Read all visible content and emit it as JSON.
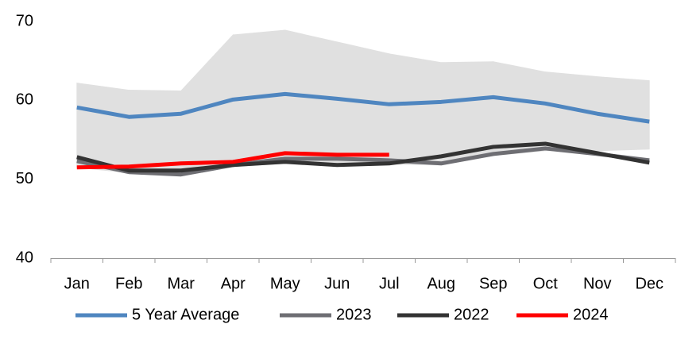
{
  "chart_data": {
    "type": "line",
    "categories": [
      "Jan",
      "Feb",
      "Mar",
      "Apr",
      "May",
      "Jun",
      "Jul",
      "Aug",
      "Sep",
      "Oct",
      "Nov",
      "Dec"
    ],
    "range": {
      "color": "#e0e0e0",
      "upper": [
        62.2,
        61.3,
        61.2,
        68.3,
        68.9,
        67.4,
        65.9,
        64.8,
        64.9,
        63.6,
        63.0,
        62.5
      ],
      "lower": [
        51.5,
        50.8,
        50.4,
        51.6,
        52.0,
        51.7,
        51.9,
        51.8,
        53.0,
        53.6,
        53.6,
        53.8
      ]
    },
    "series": [
      {
        "name": "5 Year Average",
        "color": "#4f86c0",
        "values": [
          59.1,
          57.9,
          58.3,
          60.1,
          60.8,
          60.2,
          59.5,
          59.8,
          60.4,
          59.6,
          58.3,
          57.3
        ]
      },
      {
        "name": "2023",
        "color": "#6e6e73",
        "values": [
          52.3,
          50.9,
          50.6,
          51.8,
          52.6,
          52.6,
          52.4,
          52.0,
          53.2,
          53.9,
          53.2,
          52.4
        ]
      },
      {
        "name": "2022",
        "color": "#333333",
        "values": [
          52.8,
          51.1,
          51.1,
          51.8,
          52.2,
          51.8,
          52.0,
          52.9,
          54.1,
          54.5,
          53.3,
          52.1
        ]
      },
      {
        "name": "2024",
        "color": "#ff0000",
        "values": [
          51.5,
          51.6,
          52.0,
          52.2,
          53.3,
          53.1,
          53.1,
          null,
          null,
          null,
          null,
          null
        ]
      }
    ],
    "ylim": [
      40,
      70
    ],
    "yticks": [
      40,
      50,
      60,
      70
    ],
    "grid": false
  }
}
